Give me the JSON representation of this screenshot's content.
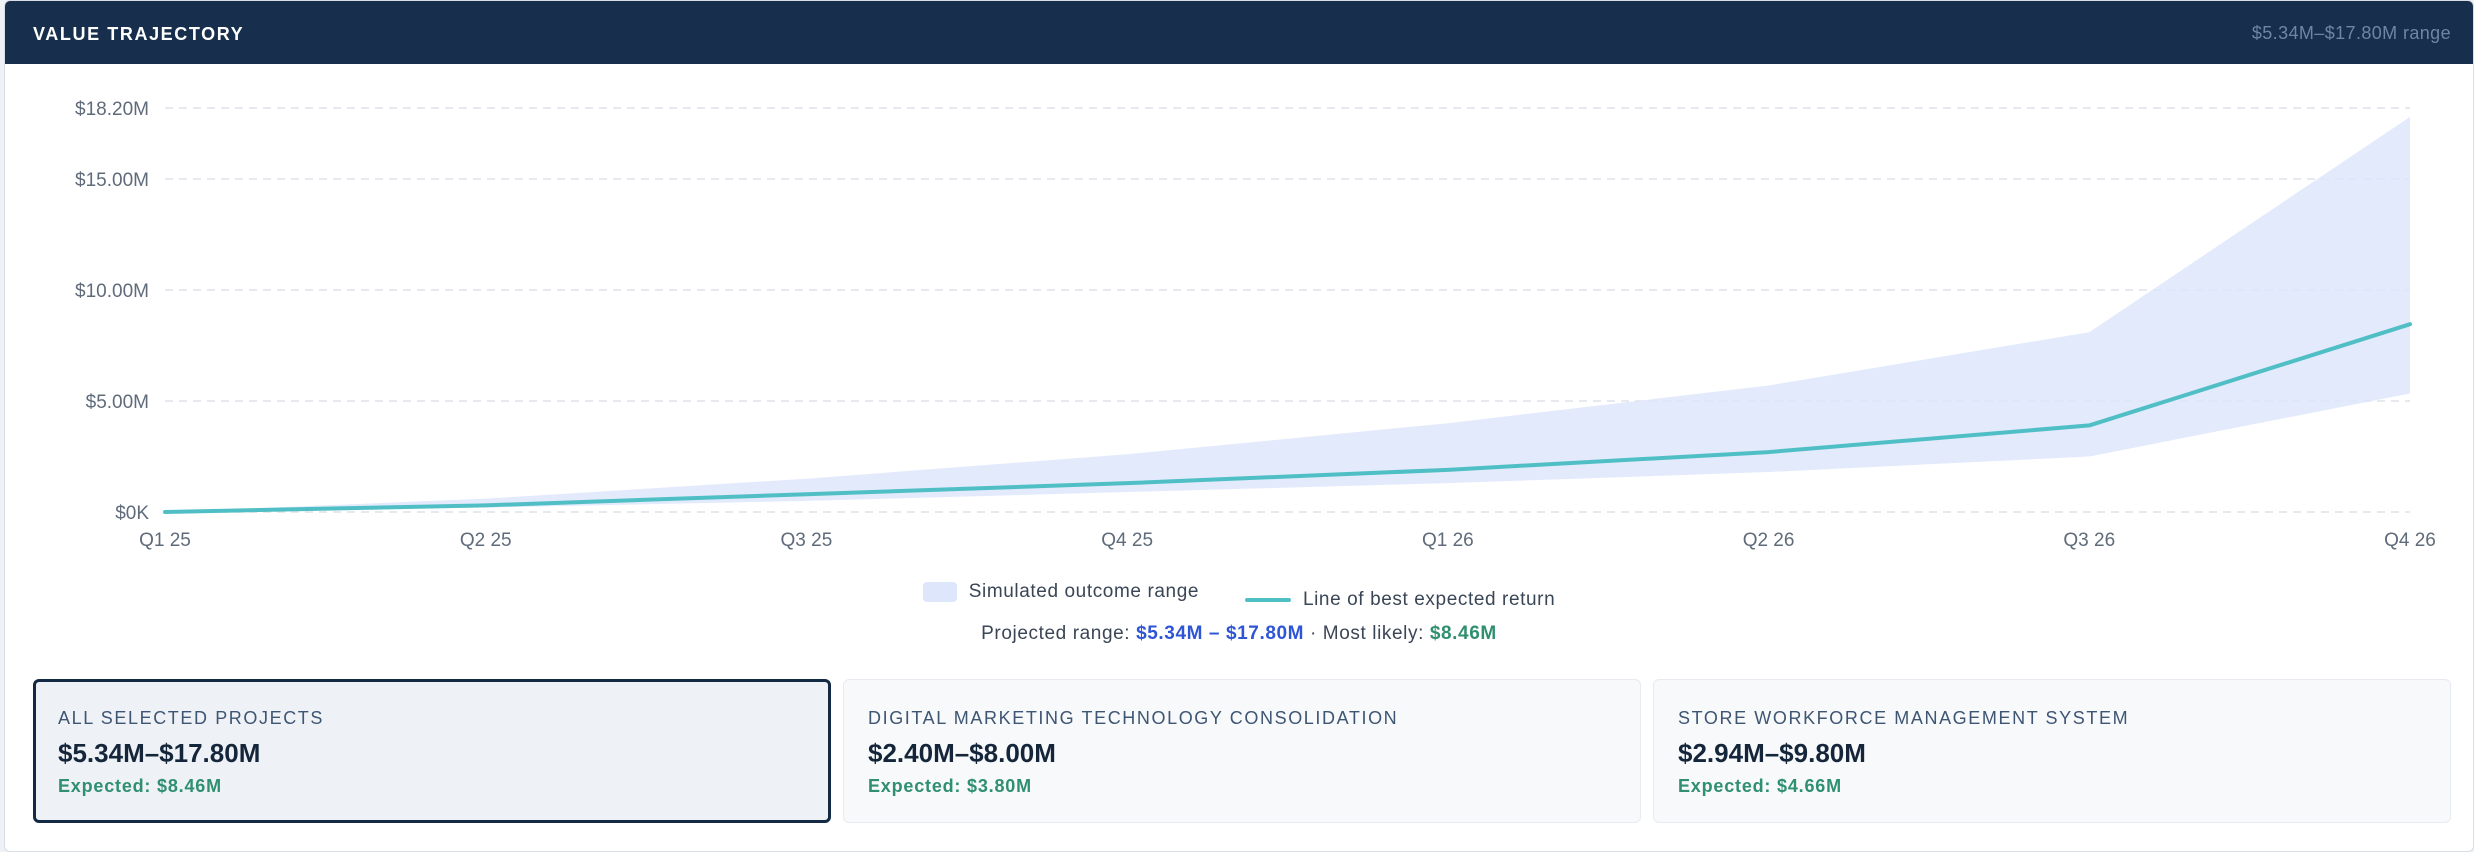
{
  "header": {
    "title": "VALUE TRAJECTORY",
    "range_label": "$5.34M–$17.80M range"
  },
  "chart_data": {
    "type": "area",
    "title": "",
    "xlabel": "",
    "ylabel": "",
    "categories": [
      "Q1 25",
      "Q2 25",
      "Q3 25",
      "Q4 25",
      "Q1 26",
      "Q2 26",
      "Q3 26",
      "Q4 26"
    ],
    "y_ticks": [
      {
        "value": 0,
        "label": "$0K"
      },
      {
        "value": 5,
        "label": "$5.00M"
      },
      {
        "value": 10,
        "label": "$10.00M"
      },
      {
        "value": 15,
        "label": "$15.00M"
      },
      {
        "value": 18.2,
        "label": "$18.20M"
      }
    ],
    "ylim": [
      0,
      18.2
    ],
    "grid": true,
    "series": [
      {
        "kind": "band",
        "lower": [
          0,
          0.2,
          0.5,
          0.9,
          1.3,
          1.8,
          2.5,
          5.34
        ],
        "upper": [
          0,
          0.6,
          1.5,
          2.6,
          4.0,
          5.7,
          8.1,
          17.8
        ]
      },
      {
        "kind": "line",
        "values": [
          0,
          0.3,
          0.8,
          1.3,
          1.9,
          2.7,
          3.9,
          8.46
        ]
      }
    ],
    "colors": {
      "band": "#dde6fb",
      "line": "#4fbfc5",
      "grid": "#dde2e8"
    }
  },
  "legend": {
    "band_label": "Simulated outcome range",
    "line_label": "Line of best expected return"
  },
  "summary": {
    "prefix": "Projected range: ",
    "range": "$5.34M – $17.80M",
    "middle": " · Most likely: ",
    "likely": "$8.46M"
  },
  "cards": [
    {
      "title": "ALL SELECTED PROJECTS",
      "range": "$5.34M–$17.80M",
      "expected": "Expected: $8.46M",
      "selected": true
    },
    {
      "title": "DIGITAL MARKETING TECHNOLOGY CONSOLIDATION",
      "range": "$2.40M–$8.00M",
      "expected": "Expected: $3.80M",
      "selected": false
    },
    {
      "title": "STORE WORKFORCE MANAGEMENT SYSTEM",
      "range": "$2.94M–$9.80M",
      "expected": "Expected: $4.66M",
      "selected": false
    }
  ]
}
